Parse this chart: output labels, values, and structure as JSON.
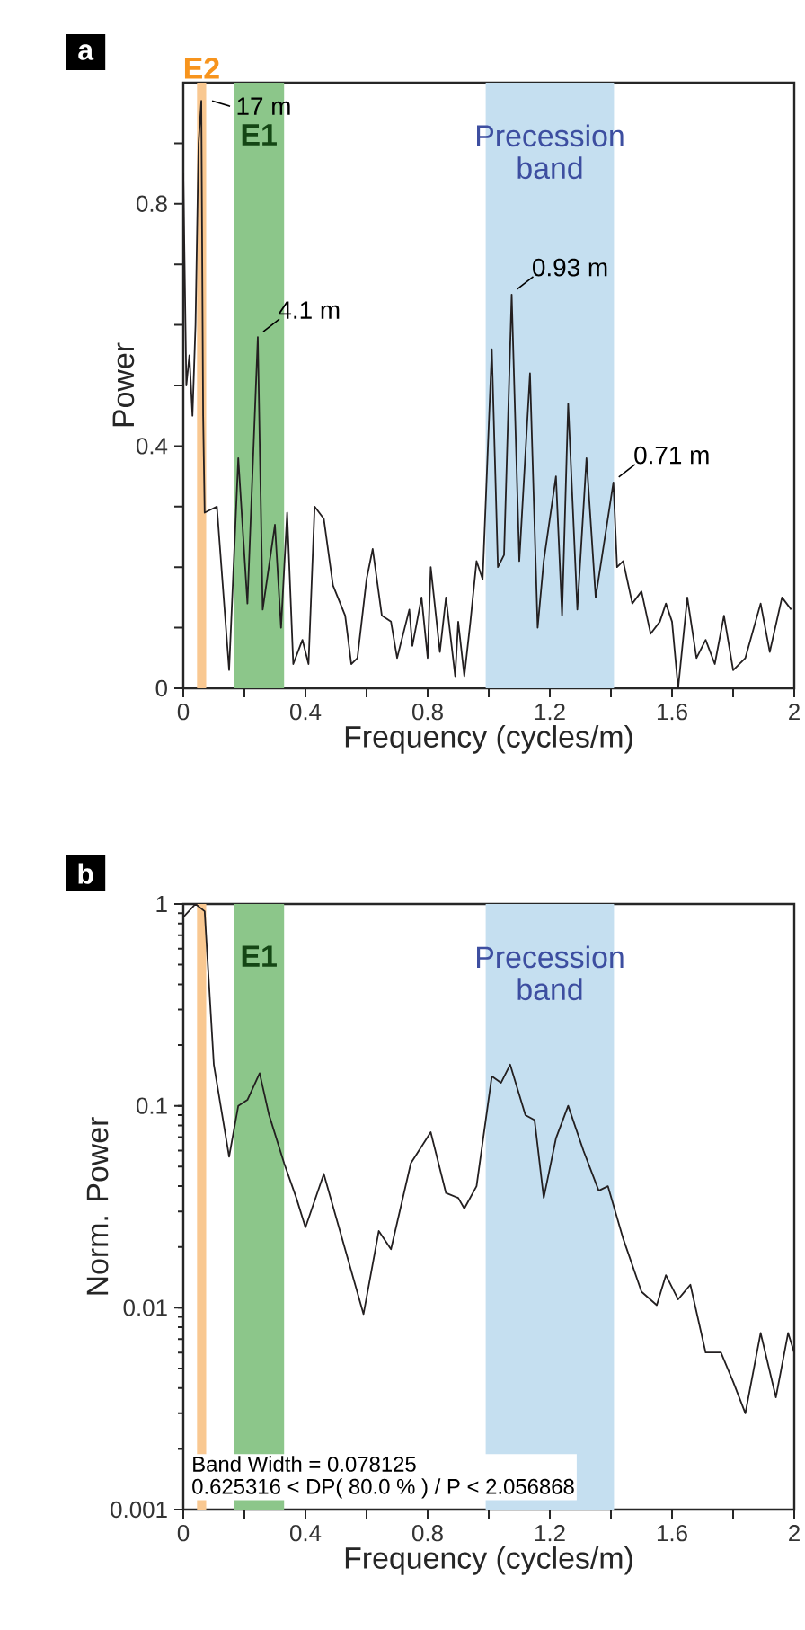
{
  "chart_data": [
    {
      "type": "line",
      "title": "a",
      "xlabel": "Frequency (cycles/m)",
      "ylabel": "Power",
      "xlim": [
        0,
        2
      ],
      "xticks": [
        0,
        {
          "value": 0.2,
          "label": null
        },
        0.4,
        {
          "value": 0.6,
          "label": null
        },
        0.8,
        {
          "value": 1.0,
          "label": null
        },
        1.2,
        {
          "value": 1.4,
          "label": null
        },
        1.6,
        {
          "value": 1.8,
          "label": null
        },
        2
      ],
      "ylim": [
        0,
        1
      ],
      "yticks": [
        0,
        {
          "value": 0.1,
          "label": null
        },
        {
          "value": 0.2,
          "label": null
        },
        {
          "value": 0.3,
          "label": null
        },
        0.4,
        {
          "value": 0.5,
          "label": null
        },
        {
          "value": 0.6,
          "label": null
        },
        {
          "value": 0.7,
          "label": null
        },
        0.8,
        {
          "value": 0.9,
          "label": null
        }
      ],
      "bands": [
        {
          "axis": "x",
          "from": 0.045,
          "to": 0.075,
          "label": "E2",
          "color": "#f9c891"
        },
        {
          "axis": "x",
          "from": 0.165,
          "to": 0.33,
          "label": "E1",
          "color": "#8cc68a"
        },
        {
          "axis": "x",
          "from": 0.99,
          "to": 1.41,
          "label": "Precession band",
          "color": "#c5dff0"
        }
      ],
      "annotations": [
        {
          "text": "17 m",
          "x": 0.059,
          "y": 0.97
        },
        {
          "text": "4.1 m",
          "x": 0.244,
          "y": 0.58
        },
        {
          "text": "0.93 m",
          "x": 1.075,
          "y": 0.65
        },
        {
          "text": "0.71 m",
          "x": 1.408,
          "y": 0.34
        }
      ],
      "series": [
        {
          "color": "#231f20",
          "x": [
            0,
            0.01,
            0.02,
            0.03,
            0.04,
            0.05,
            0.059,
            0.065,
            0.07,
            0.11,
            0.15,
            0.18,
            0.21,
            0.244,
            0.26,
            0.3,
            0.32,
            0.34,
            0.36,
            0.39,
            0.41,
            0.43,
            0.46,
            0.49,
            0.53,
            0.55,
            0.57,
            0.6,
            0.62,
            0.65,
            0.68,
            0.7,
            0.74,
            0.75,
            0.78,
            0.8,
            0.81,
            0.84,
            0.86,
            0.89,
            0.9,
            0.92,
            0.94,
            0.96,
            0.98,
            1.01,
            1.03,
            1.05,
            1.075,
            1.1,
            1.135,
            1.16,
            1.18,
            1.22,
            1.24,
            1.26,
            1.29,
            1.32,
            1.35,
            1.408,
            1.42,
            1.44,
            1.47,
            1.5,
            1.53,
            1.56,
            1.58,
            1.6,
            1.62,
            1.65,
            1.68,
            1.71,
            1.74,
            1.77,
            1.8,
            1.84,
            1.89,
            1.92,
            1.96,
            1.99
          ],
          "values": [
            0.85,
            0.5,
            0.55,
            0.45,
            0.6,
            0.9,
            0.97,
            0.45,
            0.29,
            0.3,
            0.03,
            0.38,
            0.14,
            0.58,
            0.13,
            0.27,
            0.1,
            0.29,
            0.04,
            0.08,
            0.04,
            0.3,
            0.28,
            0.17,
            0.12,
            0.04,
            0.05,
            0.18,
            0.23,
            0.12,
            0.11,
            0.05,
            0.13,
            0.07,
            0.15,
            0.05,
            0.2,
            0.06,
            0.15,
            0.02,
            0.11,
            0.02,
            0.11,
            0.21,
            0.18,
            0.56,
            0.2,
            0.22,
            0.65,
            0.21,
            0.52,
            0.1,
            0.21,
            0.35,
            0.12,
            0.47,
            0.13,
            0.38,
            0.15,
            0.34,
            0.2,
            0.21,
            0.14,
            0.16,
            0.09,
            0.11,
            0.14,
            0.11,
            0.0,
            0.15,
            0.05,
            0.08,
            0.04,
            0.12,
            0.03,
            0.05,
            0.14,
            0.06,
            0.15,
            0.13
          ]
        }
      ]
    },
    {
      "type": "line",
      "title": "b",
      "xlabel": "Frequency (cycles/m)",
      "ylabel": "Norm. Power",
      "log": "y",
      "xlim": [
        0,
        2
      ],
      "xticks": [
        0,
        {
          "value": 0.2,
          "label": null
        },
        0.4,
        {
          "value": 0.6,
          "label": null
        },
        0.8,
        {
          "value": 1.0,
          "label": null
        },
        1.2,
        {
          "value": 1.4,
          "label": null
        },
        1.6,
        {
          "value": 1.8,
          "label": null
        },
        2
      ],
      "ylim": [
        0.001,
        1
      ],
      "yticks": [
        0.001,
        0.01,
        0.1,
        1
      ],
      "bands": [
        {
          "axis": "x",
          "from": 0.045,
          "to": 0.075,
          "color": "#f9c891"
        },
        {
          "axis": "x",
          "from": 0.165,
          "to": 0.33,
          "label": "E1",
          "color": "#8cc68a"
        },
        {
          "axis": "x",
          "from": 0.99,
          "to": 1.41,
          "label": "Precession band",
          "color": "#c5dff0"
        }
      ],
      "annotations": [
        "Band Width = 0.078125",
        "0.625316 < DP( 80.0 % ) / P < 2.056868"
      ],
      "series": [
        {
          "color": "#231f20",
          "x": [
            0,
            0.04,
            0.07,
            0.1,
            0.15,
            0.18,
            0.21,
            0.25,
            0.28,
            0.33,
            0.37,
            0.4,
            0.46,
            0.52,
            0.59,
            0.64,
            0.68,
            0.745,
            0.81,
            0.86,
            0.9,
            0.92,
            0.96,
            1.01,
            1.04,
            1.07,
            1.12,
            1.15,
            1.18,
            1.22,
            1.26,
            1.31,
            1.36,
            1.39,
            1.44,
            1.5,
            1.55,
            1.58,
            1.62,
            1.66,
            1.71,
            1.76,
            1.8,
            1.84,
            1.89,
            1.94,
            1.98,
            2.0
          ],
          "values": [
            0.86,
            1.0,
            0.92,
            0.16,
            0.056,
            0.1,
            0.107,
            0.145,
            0.091,
            0.052,
            0.035,
            0.025,
            0.046,
            0.022,
            0.0093,
            0.024,
            0.0195,
            0.052,
            0.074,
            0.037,
            0.035,
            0.031,
            0.04,
            0.14,
            0.13,
            0.16,
            0.09,
            0.085,
            0.035,
            0.069,
            0.1,
            0.06,
            0.038,
            0.04,
            0.022,
            0.012,
            0.0103,
            0.0145,
            0.011,
            0.013,
            0.006,
            0.006,
            0.0043,
            0.003,
            0.0075,
            0.0036,
            0.0075,
            0.006
          ]
        }
      ]
    }
  ]
}
